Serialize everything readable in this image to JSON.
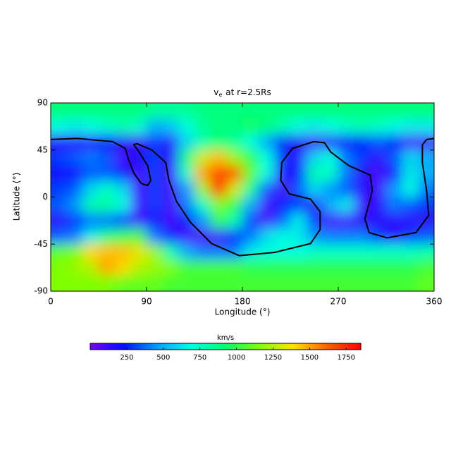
{
  "chart_data": {
    "type": "heatmap",
    "title": {
      "main": "v",
      "sub": "e",
      "rest": "at r=2.5Rs"
    },
    "x_label": "Longitude (°)",
    "y_label": "Latitude (°)",
    "xlim": [
      0,
      360
    ],
    "xticks": [
      0,
      90,
      180,
      270,
      360
    ],
    "ylim": [
      -90,
      90
    ],
    "yticks": [
      -90,
      -45,
      0,
      45,
      90
    ],
    "lon_centers": [
      7.5,
      22.5,
      37.5,
      52.5,
      67.5,
      82.5,
      97.5,
      112.5,
      127.5,
      142.5,
      157.5,
      172.5,
      187.5,
      202.5,
      217.5,
      232.5,
      247.5,
      262.5,
      277.5,
      292.5,
      307.5,
      322.5,
      337.5,
      352.5
    ],
    "lat_centers": [
      82.5,
      67.5,
      52.5,
      37.5,
      22.5,
      7.5,
      -7.5,
      -22.5,
      -37.5,
      -52.5,
      -67.5,
      -82.5
    ],
    "values": [
      [
        900,
        900,
        900,
        900,
        900,
        900,
        850,
        850,
        850,
        900,
        900,
        900,
        900,
        900,
        900,
        900,
        900,
        900,
        900,
        900,
        900,
        900,
        900,
        900
      ],
      [
        700,
        650,
        700,
        750,
        800,
        750,
        500,
        550,
        700,
        850,
        900,
        900,
        950,
        900,
        800,
        700,
        650,
        700,
        750,
        800,
        750,
        700,
        650,
        650
      ],
      [
        150,
        150,
        150,
        200,
        150,
        100,
        300,
        150,
        600,
        800,
        900,
        850,
        700,
        500,
        250,
        150,
        100,
        150,
        200,
        250,
        350,
        250,
        100,
        100
      ],
      [
        300,
        350,
        400,
        350,
        100,
        200,
        300,
        150,
        900,
        1300,
        1450,
        1200,
        1000,
        700,
        300,
        150,
        600,
        700,
        400,
        300,
        150,
        350,
        600,
        500
      ],
      [
        200,
        200,
        350,
        350,
        250,
        100,
        300,
        100,
        750,
        1500,
        1700,
        1650,
        1100,
        700,
        150,
        250,
        800,
        750,
        400,
        150,
        100,
        200,
        650,
        500
      ],
      [
        300,
        350,
        600,
        750,
        600,
        100,
        300,
        100,
        450,
        1200,
        1800,
        1300,
        850,
        350,
        100,
        350,
        600,
        450,
        350,
        150,
        100,
        450,
        700,
        400
      ],
      [
        350,
        450,
        800,
        850,
        700,
        100,
        300,
        100,
        400,
        750,
        1150,
        1000,
        500,
        100,
        250,
        300,
        150,
        500,
        650,
        100,
        150,
        400,
        350,
        300
      ],
      [
        150,
        300,
        400,
        400,
        300,
        100,
        250,
        100,
        250,
        450,
        1000,
        800,
        300,
        100,
        350,
        650,
        300,
        100,
        100,
        150,
        150,
        150,
        150,
        150
      ],
      [
        350,
        400,
        650,
        900,
        1000,
        1050,
        400,
        250,
        100,
        80,
        100,
        250,
        400,
        600,
        700,
        650,
        450,
        400,
        400,
        400,
        300,
        150,
        300,
        350
      ],
      [
        1100,
        1150,
        1400,
        1450,
        1450,
        1350,
        1200,
        800,
        500,
        400,
        400,
        400,
        650,
        700,
        700,
        700,
        750,
        750,
        750,
        750,
        750,
        750,
        750,
        800
      ],
      [
        1150,
        1200,
        1250,
        1500,
        1400,
        1250,
        1200,
        1150,
        1050,
        1050,
        1050,
        1050,
        1000,
        1000,
        1000,
        1000,
        1000,
        1000,
        1000,
        1000,
        1000,
        1000,
        1000,
        1050
      ],
      [
        1150,
        1150,
        1150,
        1150,
        1100,
        1100,
        1100,
        1050,
        1050,
        1050,
        1050,
        1050,
        1050,
        1050,
        1050,
        1050,
        1050,
        1050,
        1050,
        1050,
        1050,
        1050,
        1050,
        1100
      ]
    ],
    "contour": {
      "color": "#000000",
      "lon": [
        0,
        25,
        58,
        70,
        73,
        78,
        85,
        91,
        94,
        91,
        83,
        78,
        81,
        95,
        108,
        111,
        118,
        131,
        151,
        177,
        210,
        244,
        253,
        253,
        244,
        224,
        216,
        217,
        227,
        247,
        257,
        263,
        280,
        300,
        302,
        295,
        299,
        316,
        343,
        355,
        353,
        349,
        349,
        353,
        360
      ],
      "lat": [
        55,
        56,
        53,
        46.5,
        36,
        23,
        13,
        11,
        16,
        30,
        43,
        50,
        51,
        45,
        33,
        16,
        -4,
        -24,
        -44.5,
        -56,
        -53,
        -44.5,
        -31,
        -14,
        -2,
        3,
        16,
        33,
        46.5,
        53,
        52,
        43,
        30,
        21,
        6,
        -21,
        -34,
        -39,
        -34,
        -17.5,
        6,
        33,
        50,
        55,
        56
      ]
    },
    "colorbar": {
      "label": "km/s",
      "lim": [
        0,
        1850
      ],
      "ticks": [
        250,
        500,
        750,
        1000,
        1250,
        1500,
        1750
      ]
    },
    "colormap": [
      "#7a00ff",
      "#0010ff",
      "#00a0ff",
      "#00ffe0",
      "#00ff70",
      "#80ff00",
      "#ffe000",
      "#ff6000",
      "#ff0000"
    ]
  }
}
